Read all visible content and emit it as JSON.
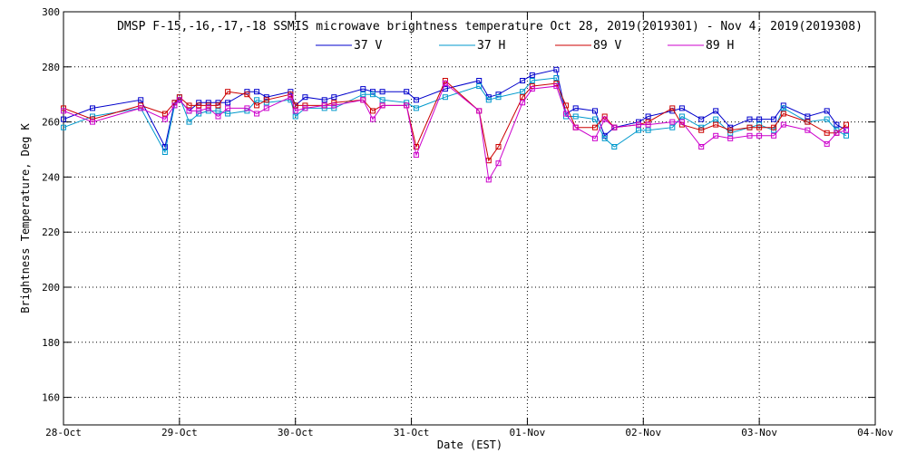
{
  "chart_data": {
    "type": "line",
    "title": "DMSP F-15,-16,-17,-18 SSMIS microwave brightness temperature Oct 28, 2019(2019301) - Nov  4, 2019(2019308)",
    "xlabel": "Date (EST)",
    "ylabel": "Brightness Temperature, Deg K",
    "ylim": [
      150,
      300
    ],
    "yticks": [
      160,
      180,
      200,
      220,
      240,
      260,
      280,
      300
    ],
    "xlim": [
      "2019-10-28 00:00",
      "2019-11-04 00:00"
    ],
    "xtick_labels": [
      "28-Oct",
      "29-Oct",
      "30-Oct",
      "31-Oct",
      "01-Nov",
      "02-Nov",
      "03-Nov",
      "04-Nov"
    ],
    "grid": true,
    "legend_position": "top",
    "x": [
      "2019-10-28 00:00",
      "2019-10-28 06:00",
      "2019-10-28 16:00",
      "2019-10-28 21:00",
      "2019-10-28 23:00",
      "2019-10-29 00:00",
      "2019-10-29 02:00",
      "2019-10-29 04:00",
      "2019-10-29 06:00",
      "2019-10-29 08:00",
      "2019-10-29 10:00",
      "2019-10-29 14:00",
      "2019-10-29 16:00",
      "2019-10-29 18:00",
      "2019-10-29 23:00",
      "2019-10-30 00:00",
      "2019-10-30 02:00",
      "2019-10-30 06:00",
      "2019-10-30 08:00",
      "2019-10-30 14:00",
      "2019-10-30 16:00",
      "2019-10-30 18:00",
      "2019-10-30 23:00",
      "2019-10-31 01:00",
      "2019-10-31 07:00",
      "2019-10-31 14:00",
      "2019-10-31 16:00",
      "2019-10-31 18:00",
      "2019-10-31 23:00",
      "2019-11-01 01:00",
      "2019-11-01 06:00",
      "2019-11-01 08:00",
      "2019-11-01 10:00",
      "2019-11-01 14:00",
      "2019-11-01 16:00",
      "2019-11-01 18:00",
      "2019-11-01 23:00",
      "2019-11-02 01:00",
      "2019-11-02 06:00",
      "2019-11-02 08:00",
      "2019-11-02 12:00",
      "2019-11-02 15:00",
      "2019-11-02 18:00",
      "2019-11-02 22:00",
      "2019-11-03 00:00",
      "2019-11-03 03:00",
      "2019-11-03 05:00",
      "2019-11-03 10:00",
      "2019-11-03 14:00",
      "2019-11-03 16:00",
      "2019-11-03 18:00"
    ],
    "series": [
      {
        "name": "37 V",
        "color": "#0000cc",
        "values": [
          261,
          265,
          268,
          251,
          267,
          268,
          264,
          267,
          267,
          267,
          267,
          271,
          271,
          269,
          271,
          266,
          269,
          268,
          269,
          272,
          271,
          271,
          271,
          268,
          272,
          275,
          269,
          270,
          275,
          277,
          279,
          263,
          265,
          264,
          255,
          258,
          260,
          262,
          264,
          265,
          261,
          264,
          258,
          261,
          261,
          261,
          266,
          262,
          264,
          259,
          257
        ]
      },
      {
        "name": "37 H",
        "color": "#0099cc",
        "values": [
          258,
          262,
          265,
          249,
          266,
          269,
          260,
          263,
          264,
          264,
          263,
          264,
          268,
          267,
          268,
          262,
          265,
          265,
          265,
          270,
          270,
          268,
          267,
          265,
          269,
          273,
          268,
          269,
          271,
          275,
          276,
          262,
          262,
          261,
          254,
          251,
          257,
          257,
          258,
          262,
          258,
          261,
          256,
          258,
          259,
          257,
          265,
          260,
          261,
          257,
          255
        ]
      },
      {
        "name": "89 V",
        "color": "#cc0000",
        "values": [
          265,
          261,
          266,
          263,
          267,
          269,
          266,
          266,
          266,
          266,
          271,
          270,
          266,
          268,
          270,
          266,
          266,
          266,
          267,
          268,
          264,
          266,
          266,
          251,
          275,
          264,
          246,
          251,
          269,
          273,
          274,
          266,
          258,
          258,
          262,
          258,
          259,
          260,
          265,
          259,
          257,
          259,
          257,
          258,
          258,
          258,
          263,
          260,
          256,
          256,
          259
        ]
      },
      {
        "name": "89 H",
        "color": "#cc00cc",
        "values": [
          264,
          260,
          265,
          261,
          266,
          268,
          264,
          264,
          265,
          262,
          265,
          265,
          263,
          265,
          269,
          264,
          265,
          266,
          266,
          268,
          261,
          266,
          266,
          248,
          274,
          264,
          239,
          245,
          267,
          272,
          273,
          263,
          258,
          254,
          261,
          258,
          259,
          259,
          260,
          260,
          251,
          255,
          254,
          255,
          255,
          255,
          259,
          257,
          252,
          256,
          257
        ]
      }
    ]
  }
}
